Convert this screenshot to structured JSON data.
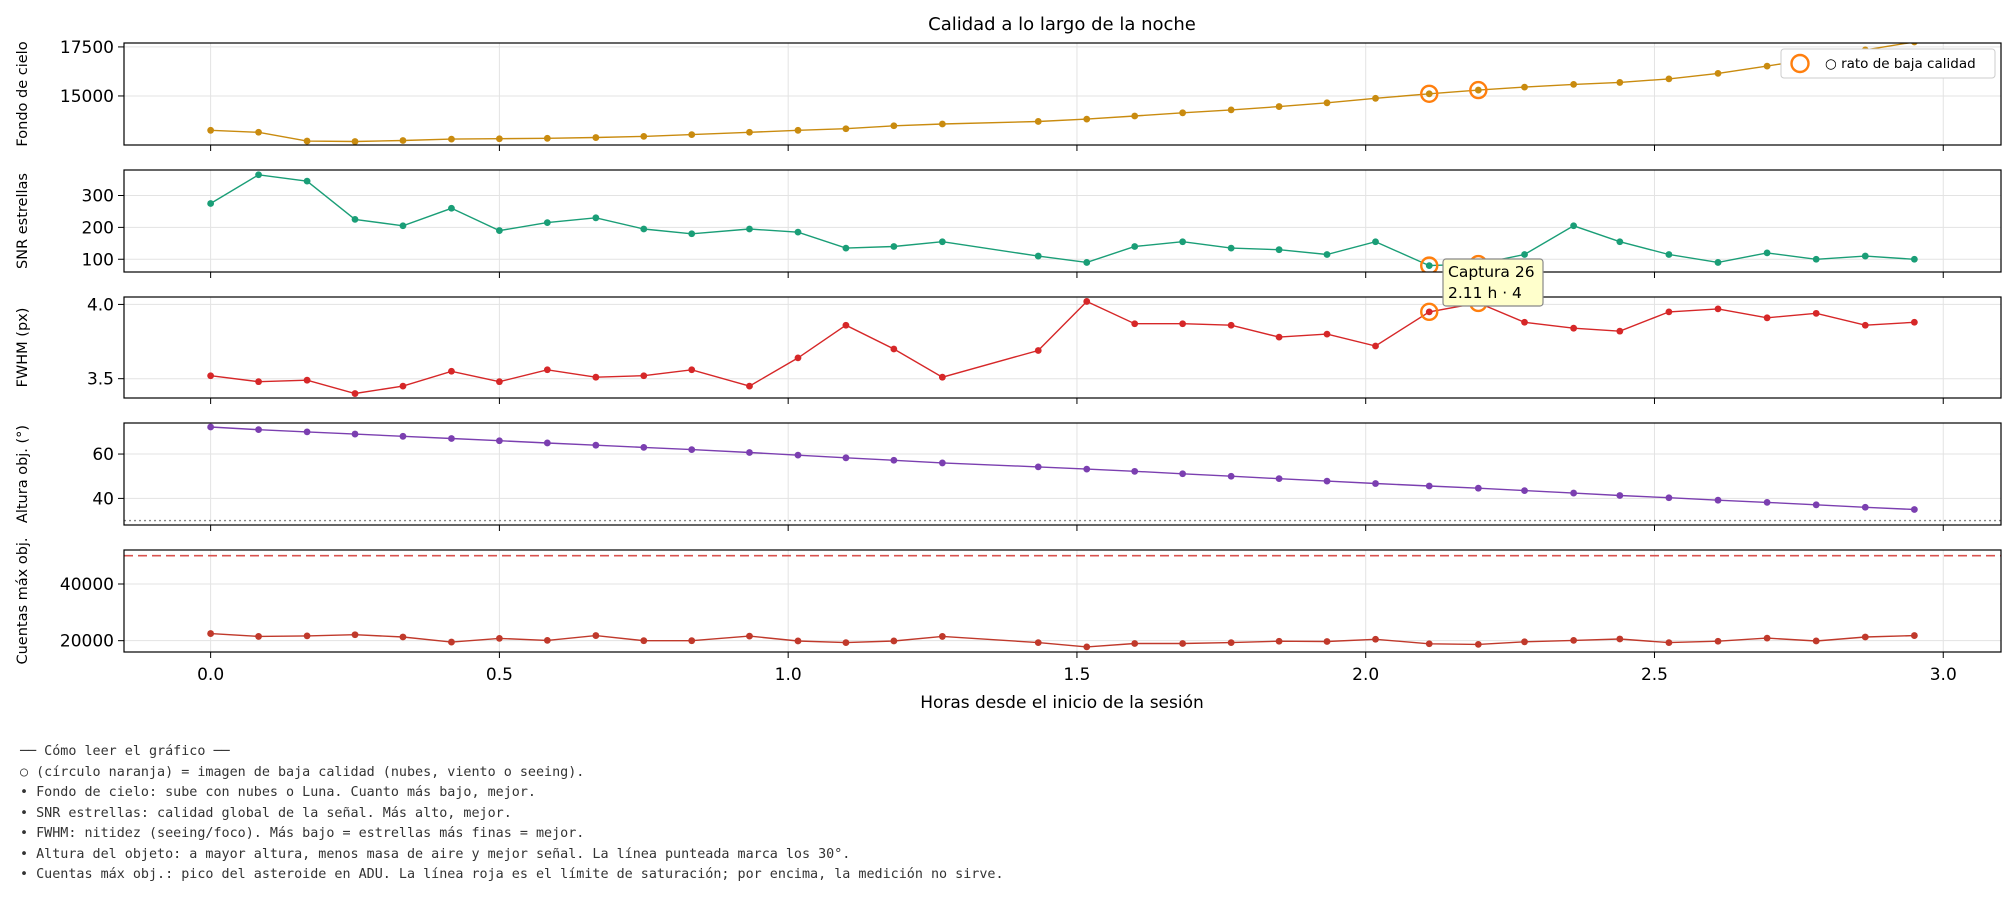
{
  "chart_data": {
    "type": "line",
    "title": "Calidad a lo largo de la noche",
    "xlabel": "Horas desde el inicio de la sesión",
    "xlim": [
      -0.15,
      3.1
    ],
    "x_ticks": [
      0.0,
      0.5,
      1.0,
      1.5,
      2.0,
      2.5,
      3.0
    ],
    "x_tick_labels": [
      "0.0",
      "0.5",
      "1.0",
      "1.5",
      "2.0",
      "2.5",
      "3.0"
    ],
    "x": [
      0.0,
      0.083,
      0.167,
      0.25,
      0.333,
      0.417,
      0.5,
      0.583,
      0.667,
      0.75,
      0.833,
      0.933,
      1.017,
      1.1,
      1.183,
      1.267,
      1.433,
      1.517,
      1.6,
      1.683,
      1.767,
      1.85,
      1.933,
      2.017,
      2.11,
      2.195,
      2.275,
      2.36,
      2.44,
      2.525,
      2.61,
      2.695,
      2.78,
      2.865,
      2.95
    ],
    "grid": true,
    "legend": {
      "label": "○ rato de baja calidad",
      "placement": "top-right"
    },
    "panels": [
      {
        "ylabel": "Fondo de cielo",
        "ylim": [
          12500,
          17700
        ],
        "y_ticks": [
          15000,
          17500
        ],
        "y_tick_labels": [
          "15000",
          "17500"
        ],
        "color": "#c98b0f",
        "values": [
          13250,
          13150,
          12700,
          12680,
          12730,
          12800,
          12820,
          12840,
          12880,
          12940,
          13030,
          13150,
          13250,
          13330,
          13480,
          13570,
          13700,
          13820,
          13980,
          14140,
          14290,
          14460,
          14650,
          14880,
          15110,
          15300,
          15450,
          15590,
          15690,
          15870,
          16150,
          16520,
          16920,
          17350,
          17750
        ]
      },
      {
        "ylabel": "SNR estrellas",
        "ylim": [
          60,
          380
        ],
        "y_ticks": [
          100,
          200,
          300
        ],
        "y_tick_labels": [
          "100",
          "200",
          "300"
        ],
        "color": "#1a9e77",
        "values": [
          275,
          365,
          345,
          225,
          205,
          260,
          190,
          215,
          230,
          195,
          180,
          195,
          185,
          135,
          140,
          155,
          110,
          90,
          140,
          155,
          135,
          130,
          115,
          155,
          80,
          85,
          115,
          205,
          155,
          115,
          90,
          120,
          100,
          110,
          100
        ]
      },
      {
        "ylabel": "FWHM (px)",
        "ylim": [
          3.37,
          4.05
        ],
        "y_ticks": [
          3.5,
          4.0
        ],
        "y_tick_labels": [
          "3.5",
          "4.0"
        ],
        "color": "#d62728",
        "values": [
          3.52,
          3.48,
          3.49,
          3.4,
          3.45,
          3.55,
          3.48,
          3.56,
          3.51,
          3.52,
          3.56,
          3.45,
          3.64,
          3.86,
          3.7,
          3.51,
          3.69,
          4.02,
          3.87,
          3.87,
          3.86,
          3.78,
          3.8,
          3.72,
          3.95,
          4.01,
          3.88,
          3.84,
          3.82,
          3.95,
          3.97,
          3.91,
          3.94,
          3.86,
          3.88
        ]
      },
      {
        "ylabel": "Altura obj. (°)",
        "ylim": [
          28,
          74
        ],
        "y_ticks": [
          40,
          60
        ],
        "y_tick_labels": [
          "40",
          "60"
        ],
        "color": "#7b3fb0",
        "reference_line": 30,
        "values": [
          72.2,
          71.0,
          70.0,
          69.0,
          68.0,
          67.0,
          66.0,
          65.0,
          64.0,
          63.0,
          62.0,
          60.7,
          59.5,
          58.3,
          57.2,
          56.0,
          54.2,
          53.2,
          52.2,
          51.1,
          50.0,
          48.9,
          47.8,
          46.7,
          45.6,
          44.6,
          43.5,
          42.4,
          41.3,
          40.3,
          39.2,
          38.2,
          37.1,
          36.0,
          35.0
        ]
      },
      {
        "ylabel": "Cuentas máx obj.",
        "ylim": [
          16000,
          52000
        ],
        "y_ticks": [
          20000,
          40000
        ],
        "y_tick_labels": [
          "20000",
          "40000"
        ],
        "color": "#c0392b",
        "reference_line": 50000,
        "values": [
          22500,
          21500,
          21700,
          22100,
          21300,
          19500,
          20800,
          20100,
          21800,
          20000,
          20000,
          21600,
          19900,
          19300,
          19900,
          21500,
          19300,
          17800,
          19000,
          19000,
          19300,
          19800,
          19700,
          20500,
          18900,
          18700,
          19600,
          20100,
          20600,
          19300,
          19800,
          20900,
          19900,
          21300,
          21800
        ]
      }
    ],
    "low_quality_indices": [
      24,
      25
    ],
    "tooltip": {
      "line1": "Captura 26",
      "line2": "2.11 h · 4"
    }
  },
  "notes": [
    "── Cómo leer el gráfico ──",
    "○ (círculo naranja) = imagen de baja calidad (nubes, viento o seeing).",
    "• Fondo de cielo: sube con nubes o Luna. Cuanto más bajo, mejor.",
    "• SNR estrellas: calidad global de la señal. Más alto, mejor.",
    "• FWHM: nitidez (seeing/foco). Más bajo = estrellas más finas = mejor.",
    "• Altura del objeto: a mayor altura, menos masa de aire y mejor señal. La línea punteada marca los 30°.",
    "• Cuentas máx obj.: pico del asteroide en ADU. La línea roja es el límite de saturación; por encima, la medición no sirve."
  ]
}
